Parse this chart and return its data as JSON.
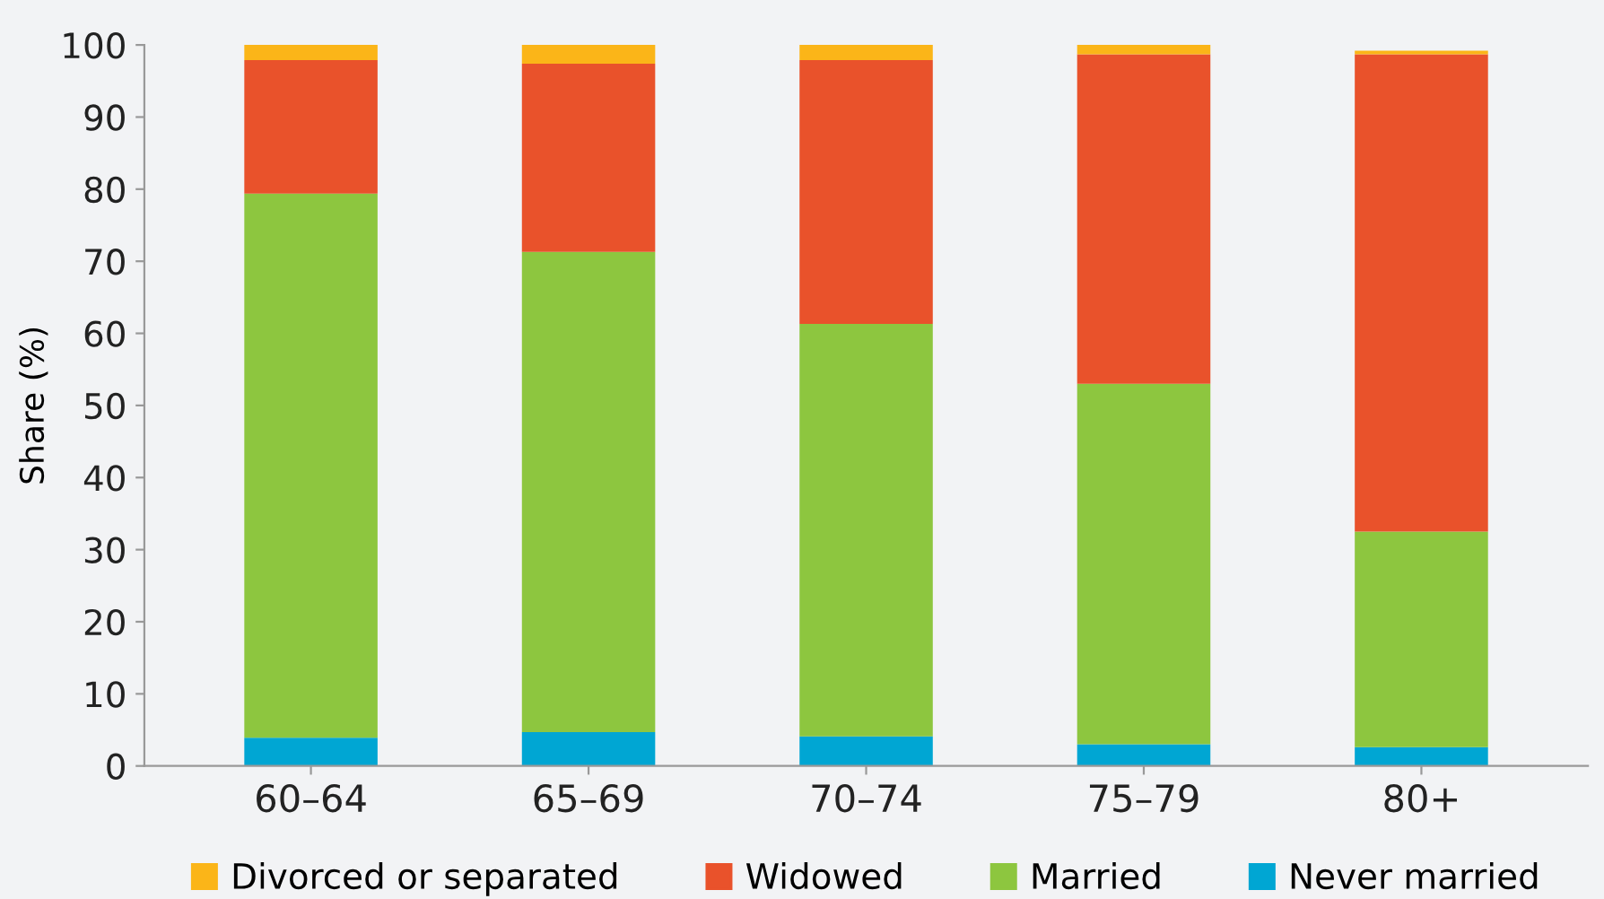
{
  "chart_data": {
    "type": "bar",
    "stacked": true,
    "ylabel": "Share (%)",
    "categories": [
      "60–64",
      "65–69",
      "70–74",
      "75–79",
      "80+"
    ],
    "series": [
      {
        "name": "Never married",
        "color": "#00a6d3",
        "values": [
          3.9,
          4.7,
          4.1,
          3.0,
          2.6
        ]
      },
      {
        "name": "Married",
        "color": "#8dc63f",
        "values": [
          75.5,
          66.6,
          57.2,
          50.0,
          29.9
        ]
      },
      {
        "name": "Widowed",
        "color": "#e9522b",
        "values": [
          18.5,
          26.1,
          36.6,
          45.7,
          66.2
        ]
      },
      {
        "name": "Divorced or separated",
        "color": "#fbb518",
        "values": [
          2.1,
          2.6,
          2.1,
          1.3,
          0.5
        ]
      }
    ],
    "ylim": [
      0,
      100
    ],
    "yticks": [
      0,
      10,
      20,
      30,
      40,
      50,
      60,
      70,
      80,
      90,
      100
    ],
    "grid": false,
    "legend": "bottom"
  }
}
